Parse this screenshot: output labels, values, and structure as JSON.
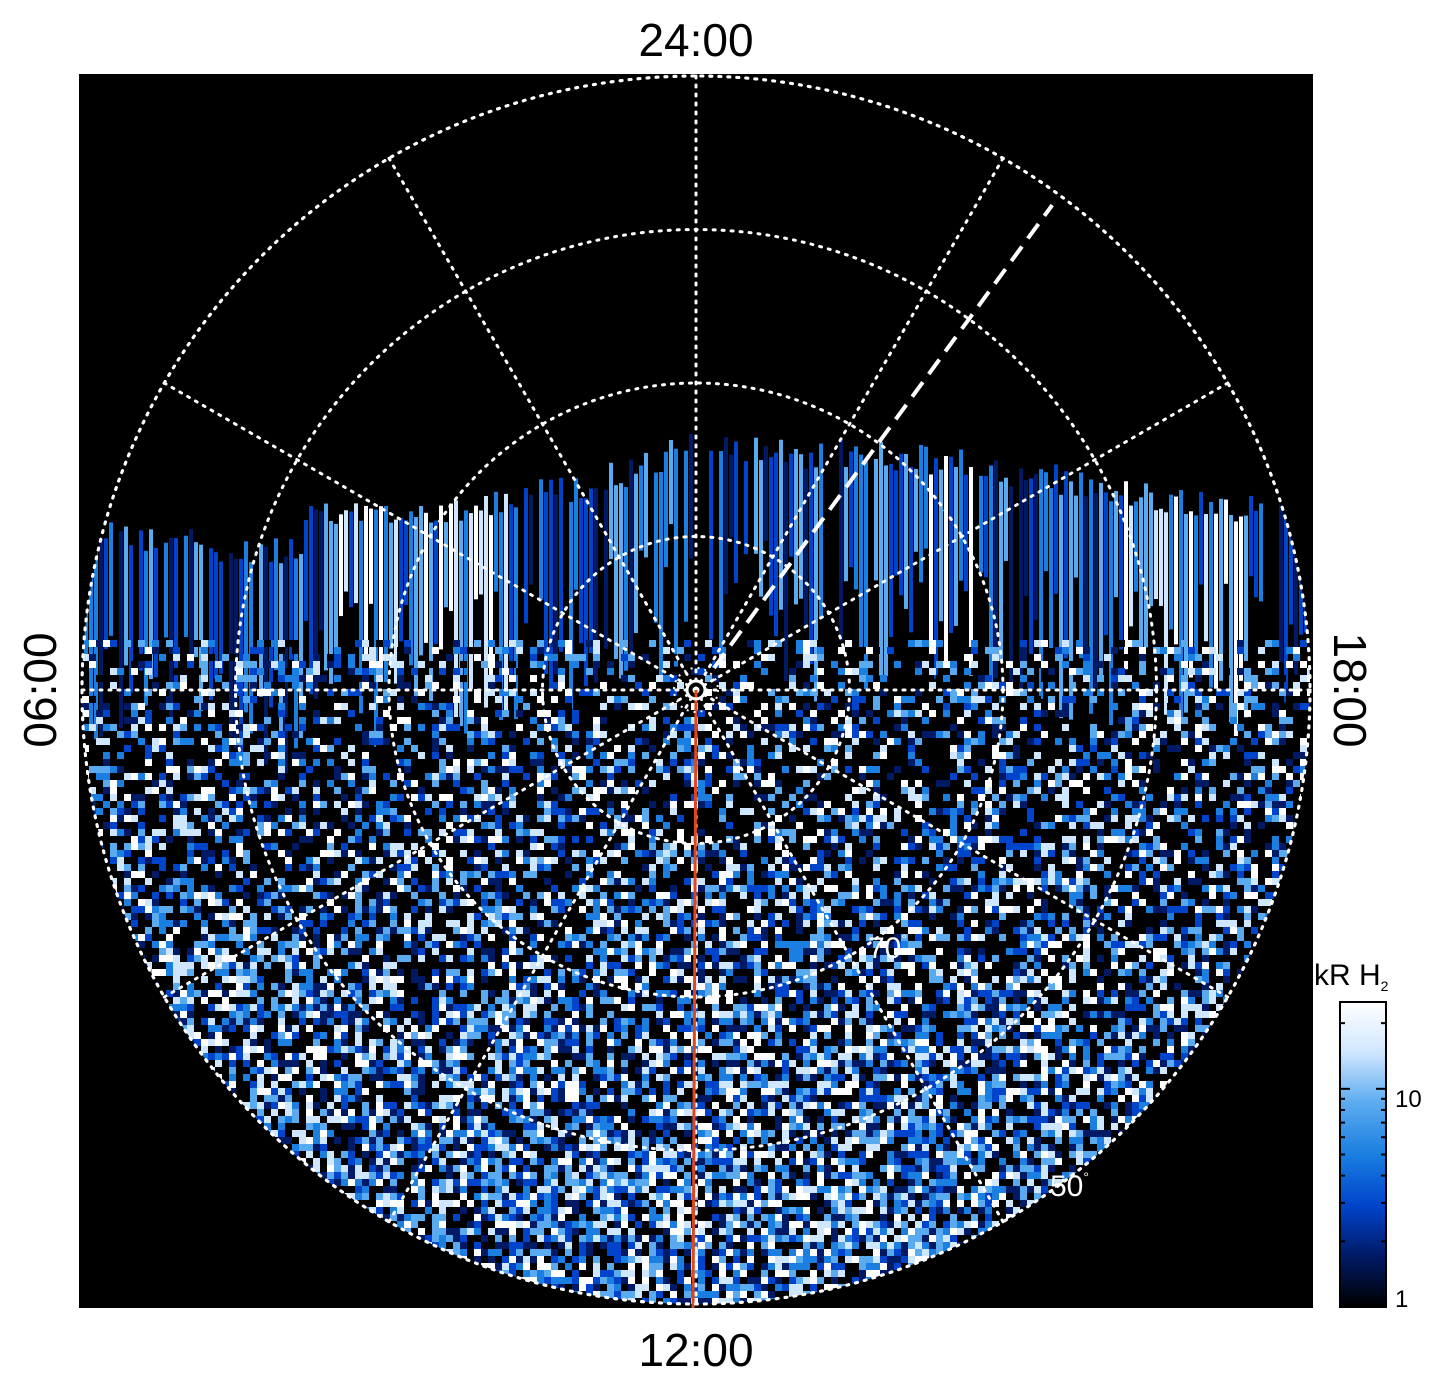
{
  "chart_data": {
    "type": "heatmap",
    "projection": "polar",
    "hemisphere_view": "auroral oval, polar projection in local time",
    "local_time_labels": {
      "top": "24:00",
      "bottom": "12:00",
      "left": "06:00",
      "right": "18:00"
    },
    "latitude_circles_deg": [
      80,
      70,
      60,
      50
    ],
    "latitude_labels": [
      {
        "value": "70",
        "unit": "°"
      },
      {
        "value": "50",
        "unit": "°"
      }
    ],
    "meridian_spacing_hours": 2,
    "grid": true,
    "colorbar": {
      "title_main": "kR H",
      "title_sub": "2",
      "scale": "log",
      "range": [
        1,
        25
      ],
      "ticks": [
        "10",
        "1"
      ],
      "colormap": [
        "#000000",
        "#001a66",
        "#0044cc",
        "#1a7fe0",
        "#5aaaf0",
        "#cfe6ff",
        "#ffffff"
      ]
    },
    "overlays": {
      "dashed_line_color": "#ffffff",
      "meridian_line_color": "#e0461e",
      "pole_marker_color": "#ffffff"
    },
    "background_color": "#000000"
  }
}
